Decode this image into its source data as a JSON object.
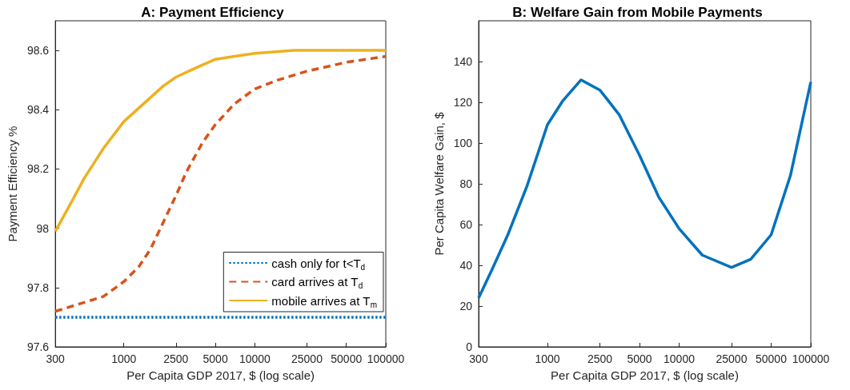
{
  "chart_data": [
    {
      "type": "line",
      "title": "A: Payment Efficiency",
      "xlabel": "Per Capita GDP 2017, $ (log scale)",
      "ylabel": "Payment Efficiency %",
      "log": "x",
      "legend": "bottom right",
      "marker": "none",
      "xlim": [
        300,
        100000
      ],
      "xticks": [
        300,
        1000,
        2500,
        5000,
        10000,
        25000,
        50000,
        100000
      ],
      "ylim": [
        97.6,
        98.7
      ],
      "yticks": [
        97.6,
        97.8,
        98,
        98.2,
        98.4,
        98.6
      ],
      "series": [
        {
          "name": "cash only for t<T$_{d}$",
          "color": "#0072bd",
          "line_style": "dotted",
          "x": [
            300,
            100000
          ],
          "values": [
            97.7,
            97.7
          ]
        },
        {
          "name": "card arrives at T$_{d}$",
          "color": "#d95319",
          "line_style": "dashed",
          "x": [
            300,
            500,
            700,
            1000,
            1300,
            1600,
            2000,
            2500,
            3000,
            4000,
            5000,
            7000,
            10000,
            15000,
            25000,
            50000,
            100000
          ],
          "values": [
            97.72,
            97.75,
            97.77,
            97.82,
            97.87,
            97.93,
            98.02,
            98.11,
            98.19,
            98.29,
            98.35,
            98.42,
            98.47,
            98.5,
            98.53,
            98.56,
            98.58
          ]
        },
        {
          "name": "mobile arrives at T$_{m}$",
          "color": "#edb120",
          "line_style": "solid",
          "x": [
            300,
            400,
            500,
            700,
            1000,
            1500,
            2000,
            2500,
            3500,
            5000,
            7000,
            10000,
            20000,
            100000
          ],
          "values": [
            97.99,
            98.09,
            98.17,
            98.27,
            98.36,
            98.43,
            98.48,
            98.51,
            98.54,
            98.57,
            98.58,
            98.59,
            98.6,
            98.6
          ]
        }
      ]
    },
    {
      "type": "line",
      "title": "B: Welfare Gain from Mobile Payments",
      "xlabel": "Per Capita GDP 2017, $ (log scale)",
      "ylabel": "Per Capita Welfare Gain, $",
      "log": "x",
      "marker": "none",
      "xlim": [
        300,
        100000
      ],
      "xticks": [
        300,
        1000,
        2500,
        5000,
        10000,
        25000,
        50000,
        100000
      ],
      "ylim": [
        0,
        160
      ],
      "yticks": [
        0,
        20,
        40,
        60,
        80,
        100,
        120,
        140
      ],
      "series": [
        {
          "color": "#0072bd",
          "line_style": "solid",
          "x": [
            300,
            380,
            500,
            700,
            1000,
            1300,
            1800,
            2500,
            3500,
            5000,
            7000,
            10000,
            15000,
            25000,
            35000,
            50000,
            70000,
            100000
          ],
          "values": [
            24,
            38,
            55,
            79,
            109,
            120.5,
            131,
            126,
            114,
            94,
            73.5,
            58,
            45,
            39,
            43,
            55,
            84,
            130
          ]
        }
      ]
    }
  ]
}
